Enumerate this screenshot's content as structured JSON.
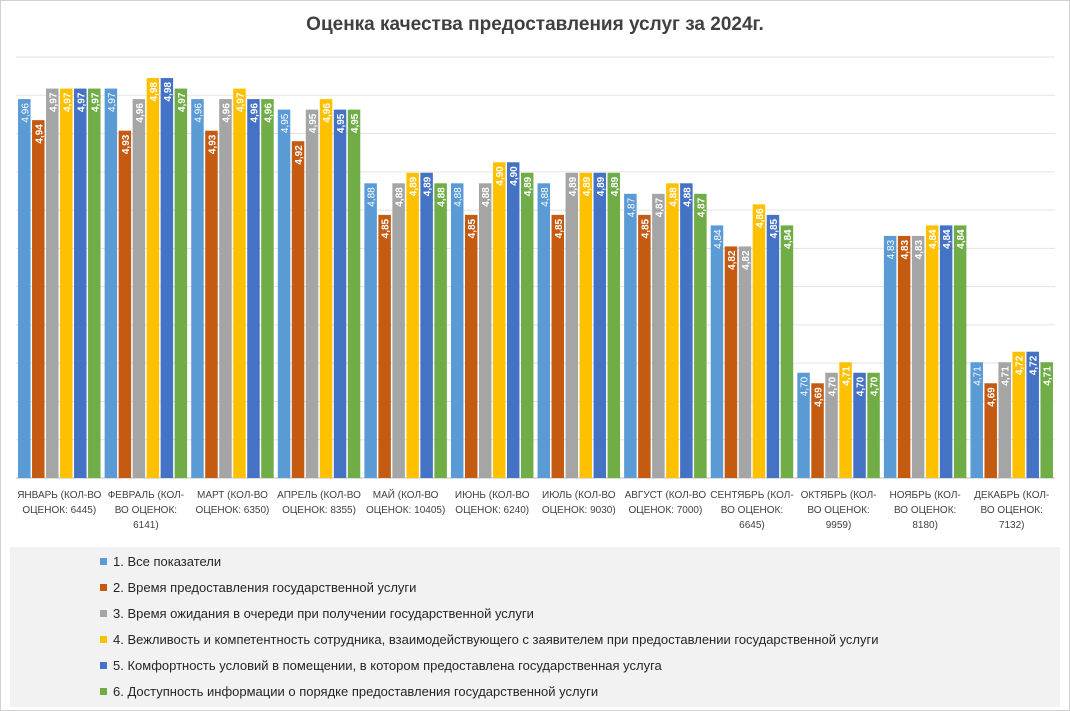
{
  "chart_data": {
    "type": "bar",
    "title": "Оценка качества предоставления услуг за 2024г.",
    "xlabel": "",
    "ylabel": "",
    "ylim": [
      4.6,
      5.0
    ],
    "grid": true,
    "legend_position": "bottom",
    "categories": [
      "ЯНВАРЬ (КОЛ-ВО ОЦЕНОК: 6445)",
      "ФЕВРАЛЬ (КОЛ-ВО ОЦЕНОК: 6141)",
      "МАРТ (КОЛ-ВО ОЦЕНОК: 6350)",
      "АПРЕЛЬ (КОЛ-ВО ОЦЕНОК: 8355)",
      "МАЙ (КОЛ-ВО ОЦЕНОК: 10405)",
      "ИЮНЬ (КОЛ-ВО ОЦЕНОК: 6240)",
      "ИЮЛЬ (КОЛ-ВО ОЦЕНОК: 9030)",
      "АВГУСТ (КОЛ-ВО ОЦЕНОК: 7000)",
      "СЕНТЯБРЬ (КОЛ-ВО ОЦЕНОК: 6645)",
      "ОКТЯБРЬ (КОЛ-ВО ОЦЕНОК: 9959)",
      "НОЯБРЬ (КОЛ-ВО ОЦЕНОК: 8180)",
      "ДЕКАБРЬ (КОЛ-ВО ОЦЕНОК: 7132)"
    ],
    "category_label_lines": [
      [
        "ЯНВАРЬ (КОЛ-ВО",
        "ОЦЕНОК: 6445)"
      ],
      [
        "ФЕВРАЛЬ (КОЛ-",
        "ВО ОЦЕНОК:",
        "6141)"
      ],
      [
        "МАРТ (КОЛ-ВО",
        "ОЦЕНОК: 6350)"
      ],
      [
        "АПРЕЛЬ (КОЛ-ВО",
        "ОЦЕНОК: 8355)"
      ],
      [
        "МАЙ (КОЛ-ВО",
        "ОЦЕНОК: 10405)"
      ],
      [
        "ИЮНЬ (КОЛ-ВО",
        "ОЦЕНОК: 6240)"
      ],
      [
        "ИЮЛЬ (КОЛ-ВО",
        "ОЦЕНОК: 9030)"
      ],
      [
        "АВГУСТ (КОЛ-ВО",
        "ОЦЕНОК: 7000)"
      ],
      [
        "СЕНТЯБРЬ (КОЛ-",
        "ВО ОЦЕНОК:",
        "6645)"
      ],
      [
        "ОКТЯБРЬ (КОЛ-",
        "ВО ОЦЕНОК:",
        "9959)"
      ],
      [
        "НОЯБРЬ (КОЛ-",
        "ВО ОЦЕНОК:",
        "8180)"
      ],
      [
        "ДЕКАБРЬ (КОЛ-",
        "ВО ОЦЕНОК:",
        "7132)"
      ]
    ],
    "series": [
      {
        "name": "1. Все показатели",
        "color": "#5b9bd5",
        "values": [
          4.96,
          4.97,
          4.96,
          4.95,
          4.88,
          4.88,
          4.88,
          4.87,
          4.84,
          4.7,
          4.83,
          4.71
        ],
        "labels": [
          "4,96",
          "4,97",
          "4,96",
          "4,95",
          "4,88",
          "4,88",
          "4,88",
          "4,87",
          "4,84",
          "4,70",
          "4,83",
          "4,71"
        ]
      },
      {
        "name": "2. Время предоставления государственной услуги",
        "color": "#c55a11",
        "values": [
          4.94,
          4.93,
          4.93,
          4.92,
          4.85,
          4.85,
          4.85,
          4.85,
          4.82,
          4.69,
          4.83,
          4.69
        ],
        "labels": [
          "4,94",
          "4,93",
          "4,93",
          "4,92",
          "4,85",
          "4,85",
          "4,85",
          "4,85",
          "4,82",
          "4,69",
          "4,83",
          "4,69"
        ]
      },
      {
        "name": "3. Время ожидания в очереди при получении государственной услуги",
        "color": "#a5a5a5",
        "values": [
          4.97,
          4.96,
          4.96,
          4.95,
          4.88,
          4.88,
          4.89,
          4.87,
          4.82,
          4.7,
          4.83,
          4.71
        ],
        "labels": [
          "4,97",
          "4,96",
          "4,96",
          "4,95",
          "4,88",
          "4,88",
          "4,89",
          "4,87",
          "4,82",
          "4,70",
          "4,83",
          "4,71"
        ]
      },
      {
        "name": "4. Вежливость и компетентность сотрудника, взаимодействующего с заявителем при предоставлении государственной услуги",
        "color": "#ffc000",
        "values": [
          4.97,
          4.98,
          4.97,
          4.96,
          4.89,
          4.9,
          4.89,
          4.88,
          4.86,
          4.71,
          4.84,
          4.72
        ],
        "labels": [
          "4,97",
          "4,98",
          "4,97",
          "4,96",
          "4,89",
          "4,90",
          "4,89",
          "4,88",
          "4,86",
          "4,71",
          "4,84",
          "4,72"
        ]
      },
      {
        "name": "5. Комфортность условий в помещении, в котором  предоставлена государственная услуга",
        "color": "#4472c4",
        "values": [
          4.97,
          4.98,
          4.96,
          4.95,
          4.89,
          4.9,
          4.89,
          4.88,
          4.85,
          4.7,
          4.84,
          4.72
        ],
        "labels": [
          "4,97",
          "4,98",
          "4,96",
          "4,95",
          "4,89",
          "4,90",
          "4,89",
          "4,88",
          "4,85",
          "4,70",
          "4,84",
          "4,72"
        ]
      },
      {
        "name": "6. Доступность информации о порядке  предоставления государственной услуги",
        "color": "#70ad47",
        "values": [
          4.97,
          4.97,
          4.96,
          4.95,
          4.88,
          4.89,
          4.89,
          4.87,
          4.84,
          4.7,
          4.84,
          4.71
        ],
        "labels": [
          "4,97",
          "4,97",
          "4,96",
          "4,95",
          "4,88",
          "4,89",
          "4,89",
          "4,87",
          "4,84",
          "4,70",
          "4,84",
          "4,71"
        ]
      }
    ]
  }
}
